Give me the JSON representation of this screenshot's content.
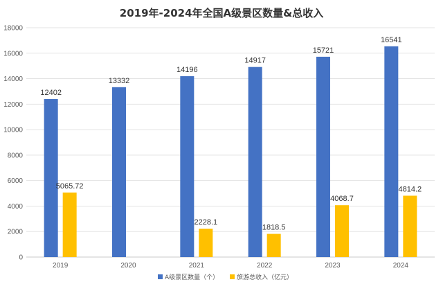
{
  "chart_data": {
    "type": "bar",
    "title": "2019年-2024年全国A级景区数量&总收入",
    "categories": [
      "2019",
      "2020",
      "2021",
      "2022",
      "2023",
      "2024"
    ],
    "ylim": [
      0,
      18000
    ],
    "yticks": [
      0,
      2000,
      4000,
      6000,
      8000,
      10000,
      12000,
      14000,
      16000,
      18000
    ],
    "grid": true,
    "legend_position": "bottom",
    "series": [
      {
        "name": "A级景区数量（个）",
        "color": "#4472C4",
        "values": [
          12402,
          13332,
          14196,
          14917,
          15721,
          16541
        ],
        "labels": [
          "12402",
          "13332",
          "14196",
          "14917",
          "15721",
          "16541"
        ]
      },
      {
        "name": "旅游总收入（亿元）",
        "color": "#FFC000",
        "values": [
          5065.72,
          null,
          2228.1,
          1818.5,
          4068.7,
          4814.2
        ],
        "labels": [
          "5065.72",
          "",
          "2228.1",
          "1818.5",
          "4068.7",
          "4814.2"
        ]
      }
    ]
  }
}
